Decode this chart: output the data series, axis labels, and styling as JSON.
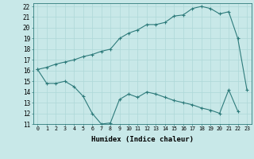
{
  "line1_x": [
    0,
    1,
    2,
    3,
    4,
    5,
    6,
    7,
    8,
    9,
    10,
    11,
    12,
    13,
    14,
    15,
    16,
    17,
    18,
    19,
    20,
    21,
    22,
    23
  ],
  "line1_y": [
    16.1,
    16.3,
    16.6,
    16.8,
    17.0,
    17.3,
    17.5,
    17.8,
    18.0,
    19.0,
    19.5,
    19.8,
    20.3,
    20.3,
    20.5,
    21.1,
    21.2,
    21.8,
    22.0,
    21.8,
    21.3,
    21.5,
    19.0,
    14.2
  ],
  "line2_x": [
    0,
    1,
    2,
    3,
    4,
    5,
    6,
    7,
    8,
    9,
    10,
    11,
    12,
    13,
    14,
    15,
    16,
    17,
    18,
    19,
    20,
    21,
    22
  ],
  "line2_y": [
    16.1,
    14.8,
    14.8,
    15.0,
    14.5,
    13.6,
    12.0,
    11.0,
    11.1,
    13.3,
    13.8,
    13.5,
    14.0,
    13.8,
    13.5,
    13.2,
    13.0,
    12.8,
    12.5,
    12.3,
    12.0,
    14.2,
    12.2
  ],
  "line_color": "#2e7b7b",
  "bg_color": "#c8e8e8",
  "grid_color": "#add8d8",
  "xlabel": "Humidex (Indice chaleur)",
  "xlim": [
    -0.5,
    23.5
  ],
  "ylim": [
    11,
    22.3
  ],
  "xticks": [
    0,
    1,
    2,
    3,
    4,
    5,
    6,
    7,
    8,
    9,
    10,
    11,
    12,
    13,
    14,
    15,
    16,
    17,
    18,
    19,
    20,
    21,
    22,
    23
  ],
  "yticks": [
    11,
    12,
    13,
    14,
    15,
    16,
    17,
    18,
    19,
    20,
    21,
    22
  ]
}
